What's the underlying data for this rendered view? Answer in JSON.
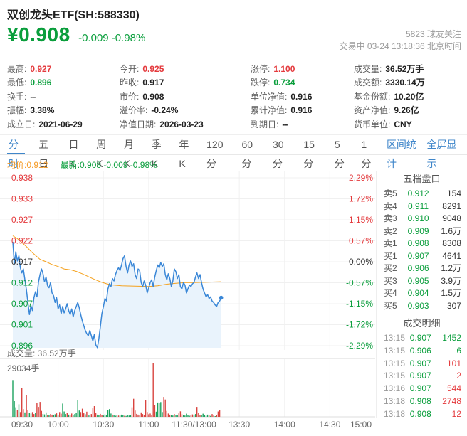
{
  "header": {
    "title": "双创龙头ETF(SH:588330)",
    "price": "¥0.908",
    "change": "-0.009 -0.98%",
    "followers": "5823 球友关注",
    "session": "交易中 03-24 13:18:36 北京时间"
  },
  "stats": {
    "columns": [
      [
        {
          "label": "最高:",
          "value": "0.927",
          "color": "r"
        },
        {
          "label": "最低:",
          "value": "0.896",
          "color": "g"
        },
        {
          "label": "换手:",
          "value": "--"
        },
        {
          "label": "振幅:",
          "value": "3.38%"
        },
        {
          "label": "成立日:",
          "value": "2021-06-29"
        }
      ],
      [
        {
          "label": "今开:",
          "value": "0.925",
          "color": "r"
        },
        {
          "label": "昨收:",
          "value": "0.917"
        },
        {
          "label": "市价:",
          "value": "0.908"
        },
        {
          "label": "溢价率:",
          "value": "-0.24%"
        },
        {
          "label": "净值日期:",
          "value": "2026-03-23"
        }
      ],
      [
        {
          "label": "涨停:",
          "value": "1.100",
          "color": "r"
        },
        {
          "label": "跌停:",
          "value": "0.734",
          "color": "g"
        },
        {
          "label": "单位净值:",
          "value": "0.916"
        },
        {
          "label": "累计净值:",
          "value": "0.916"
        },
        {
          "label": "到期日:",
          "value": "--"
        }
      ],
      [
        {
          "label": "成交量:",
          "value": "36.52万手"
        },
        {
          "label": "成交额:",
          "value": "3330.14万"
        },
        {
          "label": "基金份额:",
          "value": "10.20亿"
        },
        {
          "label": "资产净值:",
          "value": "9.26亿"
        },
        {
          "label": "货币单位:",
          "value": "CNY"
        }
      ]
    ]
  },
  "tabs": {
    "items": [
      "分时",
      "五日",
      "日K",
      "周K",
      "月K",
      "季K",
      "年K",
      "120分",
      "60分",
      "30分",
      "15分",
      "5分",
      "1分"
    ],
    "active_index": 0,
    "right_links": [
      "区间统计",
      "全屏显示"
    ]
  },
  "legend": {
    "avg_label": "均价:0.912",
    "latest_label": "最新:0.908 -0.009 -0.98%"
  },
  "order_book": {
    "title": "五档盘口",
    "rows": [
      {
        "side": "卖5",
        "price": "0.912",
        "color": "g",
        "vol": "154"
      },
      {
        "side": "卖4",
        "price": "0.911",
        "color": "g",
        "vol": "8291"
      },
      {
        "side": "卖3",
        "price": "0.910",
        "color": "g",
        "vol": "9048"
      },
      {
        "side": "卖2",
        "price": "0.909",
        "color": "g",
        "vol": "1.6万"
      },
      {
        "side": "卖1",
        "price": "0.908",
        "color": "g",
        "vol": "8308"
      },
      {
        "side": "买1",
        "price": "0.907",
        "color": "g",
        "vol": "4641"
      },
      {
        "side": "买2",
        "price": "0.906",
        "color": "g",
        "vol": "1.2万"
      },
      {
        "side": "买3",
        "price": "0.905",
        "color": "g",
        "vol": "3.9万"
      },
      {
        "side": "买4",
        "price": "0.904",
        "color": "g",
        "vol": "1.5万"
      },
      {
        "side": "买5",
        "price": "0.903",
        "color": "g",
        "vol": "307"
      }
    ]
  },
  "trade_log": {
    "title": "成交明细",
    "rows": [
      {
        "time": "13:15",
        "price": "0.907",
        "price_color": "g",
        "vol": "1452",
        "vol_color": "g"
      },
      {
        "time": "13:15",
        "price": "0.906",
        "price_color": "g",
        "vol": "6",
        "vol_color": "g"
      },
      {
        "time": "13:15",
        "price": "0.907",
        "price_color": "g",
        "vol": "101",
        "vol_color": "r"
      },
      {
        "time": "13:15",
        "price": "0.907",
        "price_color": "g",
        "vol": "2",
        "vol_color": "r"
      },
      {
        "time": "13:16",
        "price": "0.907",
        "price_color": "g",
        "vol": "544",
        "vol_color": "r"
      },
      {
        "time": "13:18",
        "price": "0.908",
        "price_color": "g",
        "vol": "2748",
        "vol_color": "r"
      },
      {
        "time": "13:18",
        "price": "0.908",
        "price_color": "g",
        "vol": "12",
        "vol_color": "r"
      }
    ]
  },
  "volume_panel": {
    "label": "成交量: 36.52万手",
    "max_label": "29034手"
  },
  "colors": {
    "up": "#e4393c",
    "down": "#0a9e3c",
    "flat": "#333333",
    "accent_blue": "#3f86ca",
    "line_blue": "#3a87d7",
    "fill_blue": "#e9f3fc",
    "avg_orange": "#f5a11c",
    "grid": "#f0f0f0",
    "baseline": "#dddddd",
    "bar_up": "#d9443f",
    "bar_down": "#1ba35e"
  },
  "chart_data": {
    "type": "line",
    "title": "分时",
    "x_ticks": [
      "09:30",
      "10:00",
      "10:30",
      "11:00",
      "11:30/13:00",
      "13:30",
      "14:00",
      "14:30",
      "15:00"
    ],
    "y_left": [
      "0.938",
      "0.933",
      "0.927",
      "0.922",
      "0.917",
      "0.912",
      "0.907",
      "0.901",
      "0.896"
    ],
    "y_right": [
      "2.29%",
      "1.72%",
      "1.15%",
      "0.57%",
      "0.00%",
      "-0.57%",
      "-1.15%",
      "-1.72%",
      "-2.29%"
    ],
    "prev_close": 0.917,
    "ylim": [
      0.896,
      0.938
    ],
    "session_minutes": 240,
    "current_minute": 138,
    "price_series": [
      [
        0,
        0.922
      ],
      [
        1,
        0.9165
      ],
      [
        2,
        0.9195
      ],
      [
        3,
        0.9172
      ],
      [
        4,
        0.9185
      ],
      [
        5,
        0.9155
      ],
      [
        6,
        0.9142
      ],
      [
        7,
        0.9152
      ],
      [
        8,
        0.9125
      ],
      [
        9,
        0.91
      ],
      [
        10,
        0.9068
      ],
      [
        11,
        0.9038
      ],
      [
        12,
        0.906
      ],
      [
        13,
        0.9048
      ],
      [
        14,
        0.908
      ],
      [
        15,
        0.9095
      ],
      [
        16,
        0.9082
      ],
      [
        17,
        0.912
      ],
      [
        18,
        0.9138
      ],
      [
        19,
        0.9152
      ],
      [
        20,
        0.914
      ],
      [
        21,
        0.912
      ],
      [
        22,
        0.9132
      ],
      [
        23,
        0.911
      ],
      [
        24,
        0.9105
      ],
      [
        25,
        0.9118
      ],
      [
        26,
        0.9092
      ],
      [
        27,
        0.9085
      ],
      [
        28,
        0.9068
      ],
      [
        29,
        0.908
      ],
      [
        30,
        0.9052
      ],
      [
        31,
        0.9062
      ],
      [
        32,
        0.904
      ],
      [
        33,
        0.9058
      ],
      [
        34,
        0.9042
      ],
      [
        35,
        0.9052
      ],
      [
        36,
        0.9065
      ],
      [
        37,
        0.9048
      ],
      [
        38,
        0.9038
      ],
      [
        39,
        0.9052
      ],
      [
        40,
        0.9032
      ],
      [
        41,
        0.9048
      ],
      [
        42,
        0.9058
      ],
      [
        43,
        0.9068
      ],
      [
        44,
        0.9055
      ],
      [
        45,
        0.9038
      ],
      [
        46,
        0.9022
      ],
      [
        47,
        0.901
      ],
      [
        48,
        0.8998
      ],
      [
        49,
        0.899
      ],
      [
        50,
        0.8985
      ],
      [
        51,
        0.8998
      ],
      [
        52,
        0.8985
      ],
      [
        53,
        0.8972
      ],
      [
        54,
        0.8988
      ],
      [
        55,
        0.8962
      ],
      [
        56,
        0.8955
      ],
      [
        57,
        0.8978
      ],
      [
        58,
        0.9008
      ],
      [
        59,
        0.904
      ],
      [
        60,
        0.9058
      ],
      [
        61,
        0.9078
      ],
      [
        62,
        0.9072
      ],
      [
        63,
        0.9102
      ],
      [
        64,
        0.9115
      ],
      [
        65,
        0.9108
      ],
      [
        66,
        0.9128
      ],
      [
        67,
        0.9122
      ],
      [
        68,
        0.9138
      ],
      [
        69,
        0.9148
      ],
      [
        70,
        0.9155
      ],
      [
        71,
        0.9148
      ],
      [
        72,
        0.9162
      ],
      [
        73,
        0.9178
      ],
      [
        74,
        0.9185
      ],
      [
        75,
        0.9158
      ],
      [
        76,
        0.9142
      ],
      [
        77,
        0.9162
      ],
      [
        78,
        0.9172
      ],
      [
        79,
        0.9158
      ],
      [
        80,
        0.9165
      ],
      [
        81,
        0.9138
      ],
      [
        82,
        0.9128
      ],
      [
        83,
        0.9152
      ],
      [
        84,
        0.9148
      ],
      [
        85,
        0.9118
      ],
      [
        86,
        0.9108
      ],
      [
        87,
        0.9122
      ],
      [
        88,
        0.9112
      ],
      [
        89,
        0.9092
      ],
      [
        90,
        0.9105
      ],
      [
        91,
        0.9118
      ],
      [
        92,
        0.9125
      ],
      [
        93,
        0.9108
      ],
      [
        94,
        0.9132
      ],
      [
        95,
        0.9148
      ],
      [
        96,
        0.9162
      ],
      [
        97,
        0.9155
      ],
      [
        98,
        0.9168
      ],
      [
        99,
        0.9158
      ],
      [
        100,
        0.9165
      ],
      [
        101,
        0.9138
      ],
      [
        102,
        0.9125
      ],
      [
        103,
        0.914
      ],
      [
        104,
        0.9128
      ],
      [
        105,
        0.9108
      ],
      [
        106,
        0.9122
      ],
      [
        107,
        0.9152
      ],
      [
        108,
        0.9145
      ],
      [
        109,
        0.9128
      ],
      [
        110,
        0.9138
      ],
      [
        111,
        0.9108
      ],
      [
        112,
        0.9102
      ],
      [
        113,
        0.9118
      ],
      [
        114,
        0.9112
      ],
      [
        115,
        0.9092
      ],
      [
        116,
        0.9102
      ],
      [
        117,
        0.9112
      ],
      [
        118,
        0.9108
      ],
      [
        119,
        0.9115
      ],
      [
        120,
        0.9118
      ],
      [
        121,
        0.9132
      ],
      [
        122,
        0.9142
      ],
      [
        123,
        0.9128
      ],
      [
        124,
        0.9138
      ],
      [
        125,
        0.9118
      ],
      [
        126,
        0.9102
      ],
      [
        127,
        0.9092
      ],
      [
        128,
        0.9082
      ],
      [
        129,
        0.9088
      ],
      [
        130,
        0.9078
      ],
      [
        131,
        0.9082
      ],
      [
        132,
        0.9072
      ],
      [
        133,
        0.9068
      ],
      [
        134,
        0.9062
      ],
      [
        135,
        0.9058
      ],
      [
        136,
        0.9068
      ],
      [
        137,
        0.9072
      ],
      [
        138,
        0.908
      ]
    ],
    "avg_series": [
      [
        0,
        0.9235
      ],
      [
        3,
        0.9228
      ],
      [
        6,
        0.9218
      ],
      [
        9,
        0.9208
      ],
      [
        12,
        0.9196
      ],
      [
        15,
        0.9186
      ],
      [
        18,
        0.9176
      ],
      [
        22,
        0.917
      ],
      [
        26,
        0.9163
      ],
      [
        30,
        0.9158
      ],
      [
        34,
        0.9152
      ],
      [
        38,
        0.915
      ],
      [
        42,
        0.9146
      ],
      [
        46,
        0.914
      ],
      [
        50,
        0.9133
      ],
      [
        54,
        0.9126
      ],
      [
        58,
        0.912
      ],
      [
        62,
        0.9115
      ],
      [
        66,
        0.9112
      ],
      [
        72,
        0.911
      ],
      [
        90,
        0.9108
      ],
      [
        96,
        0.911
      ],
      [
        102,
        0.9114
      ],
      [
        108,
        0.9116
      ],
      [
        114,
        0.9118
      ],
      [
        120,
        0.9118
      ],
      [
        138,
        0.912
      ]
    ],
    "volume": {
      "max": 29034,
      "values": [
        20000,
        8500,
        5200,
        3800,
        6800,
        2600,
        15800,
        4200,
        2400,
        11800,
        3500,
        2200,
        1800,
        2600,
        1500,
        2000,
        7600,
        5400,
        8100,
        3200,
        1600,
        1300,
        2400,
        1100,
        900,
        1500,
        1200,
        800,
        1400,
        1900,
        1000,
        2600,
        1700,
        7200,
        2900,
        1500,
        2300,
        1200,
        800,
        1800,
        1100,
        1500,
        2200,
        9100,
        3400,
        2600,
        4400,
        1900,
        1400,
        2800,
        1000,
        800,
        1500,
        4600,
        5800,
        2100,
        1200,
        900,
        1600,
        1100,
        700,
        1300,
        900,
        3600,
        4200,
        1800,
        1200,
        800,
        600,
        1000,
        700,
        900,
        1200,
        800,
        600,
        500,
        900,
        700,
        1100,
        5200,
        9800,
        3400,
        1600,
        1200,
        900,
        2400,
        1500,
        1100,
        8900,
        2600,
        1400,
        1800,
        1000,
        29034,
        6200,
        2800,
        7800,
        7400,
        8000,
        2600,
        10800,
        9400,
        3200,
        1800,
        1200,
        900,
        700,
        1500,
        1000,
        800,
        1900,
        3000,
        1400,
        900,
        700,
        1700,
        1100,
        600,
        900,
        1300,
        800,
        1500,
        5400,
        2200,
        1100,
        800,
        1700,
        900,
        600,
        1200,
        800,
        500,
        1500,
        700,
        400,
        900,
        2900,
        3800
      ],
      "colors": "gggrgrrrgrrggrrgrrrrgggrgrrggrgrrgggrgrrgggggrrrgrggrrrrggrrggggggrgggrgggrggggrrrrrrrrrrrrrrrrgggggrrrrrggrggrrrgggggrrggrrrgggggrgrrgrrr"
    }
  }
}
